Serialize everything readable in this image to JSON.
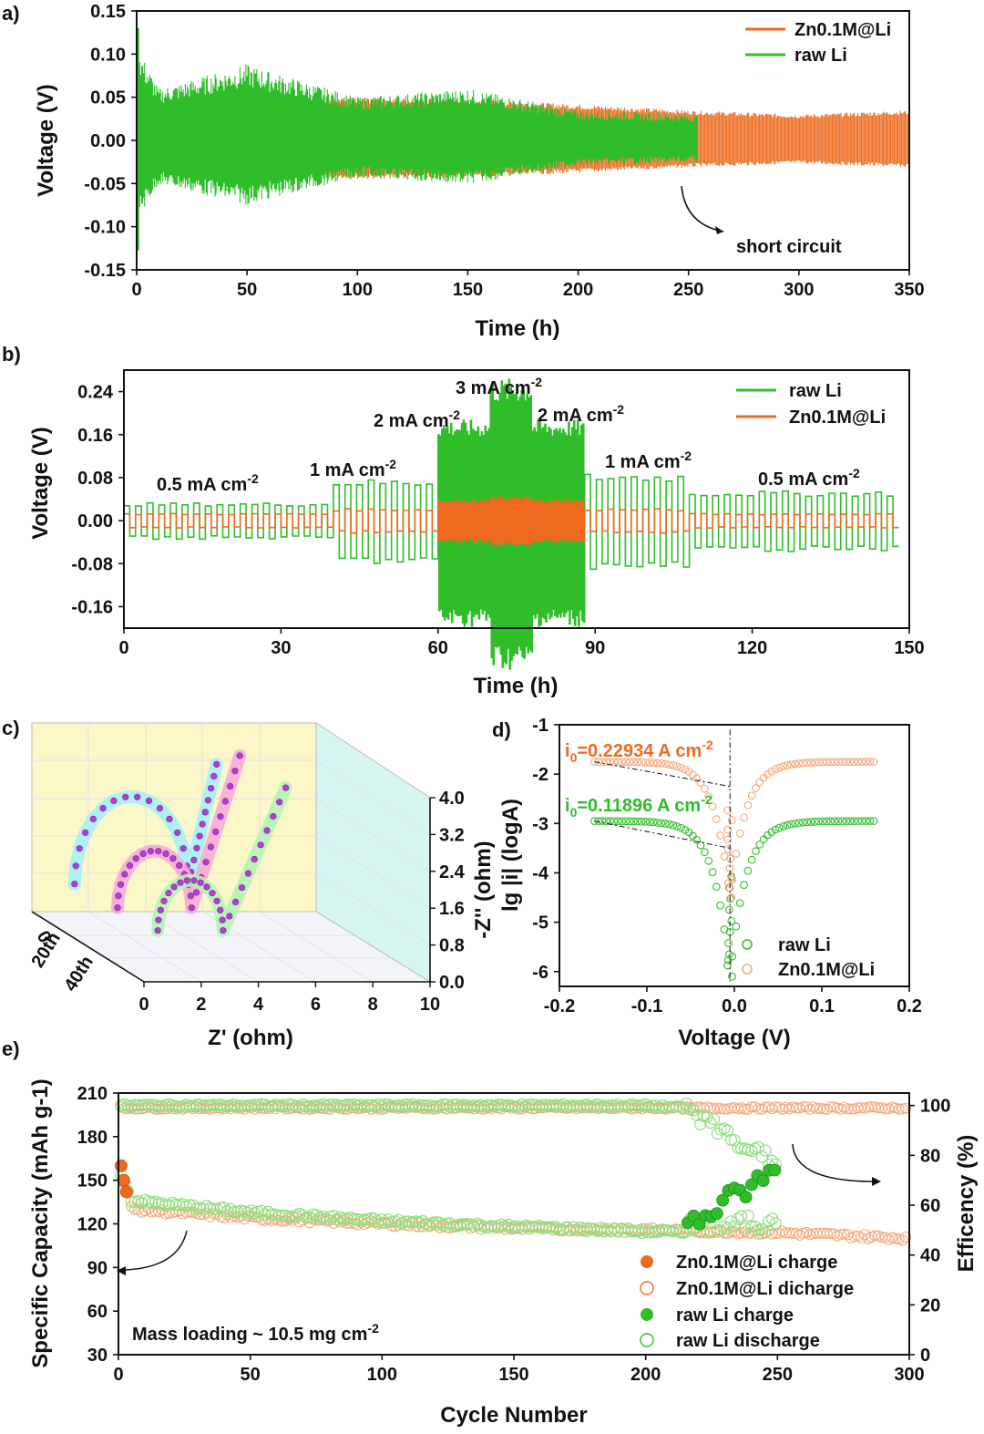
{
  "colors": {
    "zn": "#ee6a1f",
    "raw": "#2fbd2a",
    "zn_light": "#f4a77a",
    "raw_light": "#8fde7e",
    "axis": "#111111"
  },
  "panel_labels": [
    "a)",
    "b)",
    "c)",
    "d)",
    "e)"
  ],
  "chart_data": [
    {
      "id": "a",
      "type": "line",
      "xlabel": "Time (h)",
      "ylabel": "Voltage (V)",
      "xlim": [
        0,
        350
      ],
      "ylim": [
        -0.15,
        0.15
      ],
      "xticks": [
        0,
        50,
        100,
        150,
        200,
        250,
        300,
        350
      ],
      "yticks": [
        -0.15,
        -0.1,
        -0.05,
        0.0,
        0.05,
        0.1,
        0.15
      ],
      "ytick_labels": [
        "-0.15",
        "-0.10",
        "-0.05",
        "0.00",
        "0.05",
        "0.10",
        "0.15"
      ],
      "legend": [
        "Zn0.1M@Li",
        "raw Li"
      ],
      "annotation": "short circuit",
      "series": [
        {
          "name": "Zn0.1M@Li",
          "envelope": {
            "t": [
              0,
              10,
              50,
              100,
              150,
              200,
              250,
              300,
              350
            ],
            "amp": [
              0.02,
              0.025,
              0.04,
              0.05,
              0.048,
              0.042,
              0.035,
              0.03,
              0.035
            ]
          }
        },
        {
          "name": "raw Li",
          "envelope": {
            "t": [
              0,
              2,
              10,
              50,
              100,
              150,
              200,
              254
            ],
            "amp": [
              0.13,
              0.1,
              0.06,
              0.088,
              0.05,
              0.06,
              0.035,
              0.03
            ]
          }
        }
      ]
    },
    {
      "id": "b",
      "type": "line",
      "xlabel": "Time (h)",
      "ylabel": "Voltage (V)",
      "xlim": [
        0,
        150
      ],
      "ylim": [
        -0.2,
        0.28
      ],
      "xticks": [
        0,
        30,
        60,
        90,
        120,
        150
      ],
      "yticks": [
        -0.16,
        -0.08,
        0.0,
        0.08,
        0.16,
        0.24
      ],
      "ytick_labels": [
        "-0.16",
        "-0.08",
        "0.00",
        "0.08",
        "0.16",
        "0.24"
      ],
      "legend": [
        "raw Li",
        "Zn0.1M@Li"
      ],
      "rate_labels": [
        {
          "base": "0.5 mA cm",
          "sup": "-2"
        },
        {
          "base": "1 mA cm",
          "sup": "-2"
        },
        {
          "base": "2 mA cm",
          "sup": "-2"
        },
        {
          "base": "3 mA cm",
          "sup": "-2"
        },
        {
          "base": "2 mA cm",
          "sup": "-2"
        },
        {
          "base": "1 mA cm",
          "sup": "-2"
        },
        {
          "base": "0.5 mA cm",
          "sup": "-2"
        }
      ],
      "segments": [
        {
          "t0": 0,
          "t1": 40,
          "rate": 0.5,
          "raw_v": 0.03,
          "zn_v": 0.012
        },
        {
          "t0": 40,
          "t1": 60,
          "rate": 1,
          "raw_v": 0.07,
          "zn_v": 0.02
        },
        {
          "t0": 60,
          "t1": 70,
          "rate": 2,
          "raw_v": 0.17,
          "zn_v": 0.035
        },
        {
          "t0": 70,
          "t1": 78,
          "rate": 3,
          "raw_v": 0.24,
          "zn_v": 0.04
        },
        {
          "t0": 78,
          "t1": 88,
          "rate": 2,
          "raw_v": 0.17,
          "zn_v": 0.035
        },
        {
          "t0": 88,
          "t1": 108,
          "rate": 1,
          "raw_v": 0.08,
          "zn_v": 0.02
        },
        {
          "t0": 108,
          "t1": 148,
          "rate": 0.5,
          "raw_v": 0.05,
          "zn_v": 0.012
        }
      ]
    },
    {
      "id": "c",
      "type": "scatter",
      "xlabel": "Z' (ohm)",
      "ylabel": "-Z'' (ohm)",
      "xlim": [
        0,
        10
      ],
      "ylim": [
        0,
        4.0
      ],
      "xticks": [
        0,
        2,
        4,
        6,
        8,
        10
      ],
      "yticks": [
        0.0,
        0.8,
        1.6,
        2.4,
        3.2,
        4.0
      ],
      "ytick_labels": [
        "0.0",
        "0.8",
        "1.6",
        "2.4",
        "3.2",
        "4.0"
      ],
      "depth_labels": [
        "0",
        "20th",
        "40th"
      ],
      "series": [
        {
          "name": "0",
          "semicircle": [
            0.0,
            4.0
          ],
          "tail_end": [
            6.5,
            3.2
          ]
        },
        {
          "name": "20th",
          "semicircle": [
            0.2,
            2.8
          ],
          "tail_end": [
            6.0,
            3.9
          ]
        },
        {
          "name": "40th",
          "semicircle": [
            0.3,
            2.6
          ],
          "tail_end": [
            6.3,
            3.7
          ]
        }
      ]
    },
    {
      "id": "d",
      "type": "scatter",
      "xlabel": "Voltage (V)",
      "ylabel": "lg |i| (logA)",
      "xlim": [
        -0.2,
        0.2
      ],
      "ylim": [
        -6.3,
        -1
      ],
      "xticks": [
        -0.2,
        -0.1,
        0.0,
        0.1,
        0.2
      ],
      "xtick_labels": [
        "-0.2",
        "-0.1",
        "0.0",
        "0.1",
        "0.2"
      ],
      "yticks": [
        -6,
        -5,
        -4,
        -3,
        -2,
        -1
      ],
      "ytick_labels": [
        "-6",
        "-5",
        "-4",
        "-3",
        "-2",
        "-1"
      ],
      "legend": [
        "raw Li",
        "Zn0.1M@Li"
      ],
      "annotations": [
        {
          "base": "i",
          "sub": "0",
          "rest": "=0.22934  A cm",
          "sup": "-2",
          "series": "Zn0.1M@Li"
        },
        {
          "base": "i",
          "sub": "0",
          "rest": "=0.11896  A cm",
          "sup": "-2",
          "series": "raw Li"
        }
      ],
      "series": [
        {
          "name": "raw Li",
          "ends": [
            -2.95,
            -2.95
          ],
          "v0": -0.005,
          "min": -6.1
        },
        {
          "name": "Zn0.1M@Li",
          "ends": [
            -1.75,
            -1.75
          ],
          "v0": -0.005,
          "min": -4.5
        }
      ]
    },
    {
      "id": "e",
      "type": "scatter",
      "xlabel": "Cycle Number",
      "ylabel": "Specific Capacity (mAh g-1)",
      "y2label": "Efficency (%)",
      "xlim": [
        0,
        300
      ],
      "ylim": [
        30,
        210
      ],
      "y2lim": [
        0,
        105
      ],
      "xticks": [
        0,
        50,
        100,
        150,
        200,
        250,
        300
      ],
      "yticks": [
        30,
        60,
        90,
        120,
        150,
        180,
        210
      ],
      "y2ticks": [
        0,
        20,
        40,
        60,
        80,
        100
      ],
      "annotation": {
        "base": "Mass loading ~ 10.5 mg cm",
        "sup": "-2"
      },
      "legend": [
        "Zn0.1M@Li charge",
        "Zn0.1M@Li dicharge",
        "raw Li charge",
        "raw Li discharge"
      ],
      "series": [
        {
          "name": "Zn0.1M@Li charge",
          "capacity": {
            "x": [
              1,
              5,
              50,
              100,
              150,
              200,
              250,
              300
            ],
            "y": [
              160,
              130,
              124,
              120,
              117,
              116,
              114,
              110
            ]
          }
        },
        {
          "name": "Zn0.1M@Li dicharge",
          "efficiency": {
            "x": [
              1,
              300
            ],
            "y": [
              99,
              99
            ]
          }
        },
        {
          "name": "raw Li charge",
          "capacity": {
            "x": [
              1,
              5,
              50,
              100,
              150,
              200,
              215,
              250
            ],
            "y": [
              155,
              136,
              128,
              122,
              118,
              115,
              114,
              158
            ]
          }
        },
        {
          "name": "raw Li discharge",
          "efficiency": {
            "x": [
              1,
              100,
              200,
              215,
              250
            ],
            "y": [
              100,
              100,
              100,
              99,
              76
            ]
          }
        }
      ]
    }
  ]
}
